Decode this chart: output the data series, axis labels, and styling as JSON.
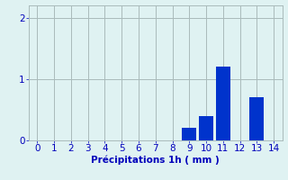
{
  "categories": [
    0,
    1,
    2,
    3,
    4,
    5,
    6,
    7,
    8,
    9,
    10,
    11,
    12,
    13,
    14
  ],
  "values": [
    0,
    0,
    0,
    0,
    0,
    0,
    0,
    0,
    0,
    0.2,
    0.4,
    1.2,
    0,
    0.7,
    0
  ],
  "bar_color": "#0033cc",
  "background_color": "#dff2f2",
  "xlabel": "Précipitations 1h ( mm )",
  "ylim": [
    0,
    2.2
  ],
  "xlim": [
    -0.5,
    14.5
  ],
  "yticks": [
    0,
    1,
    2
  ],
  "xticks": [
    0,
    1,
    2,
    3,
    4,
    5,
    6,
    7,
    8,
    9,
    10,
    11,
    12,
    13,
    14
  ],
  "grid_color": "#aabbbb",
  "xlabel_color": "#0000bb",
  "tick_color": "#0000bb",
  "label_fontsize": 7.5,
  "bar_width": 0.85
}
